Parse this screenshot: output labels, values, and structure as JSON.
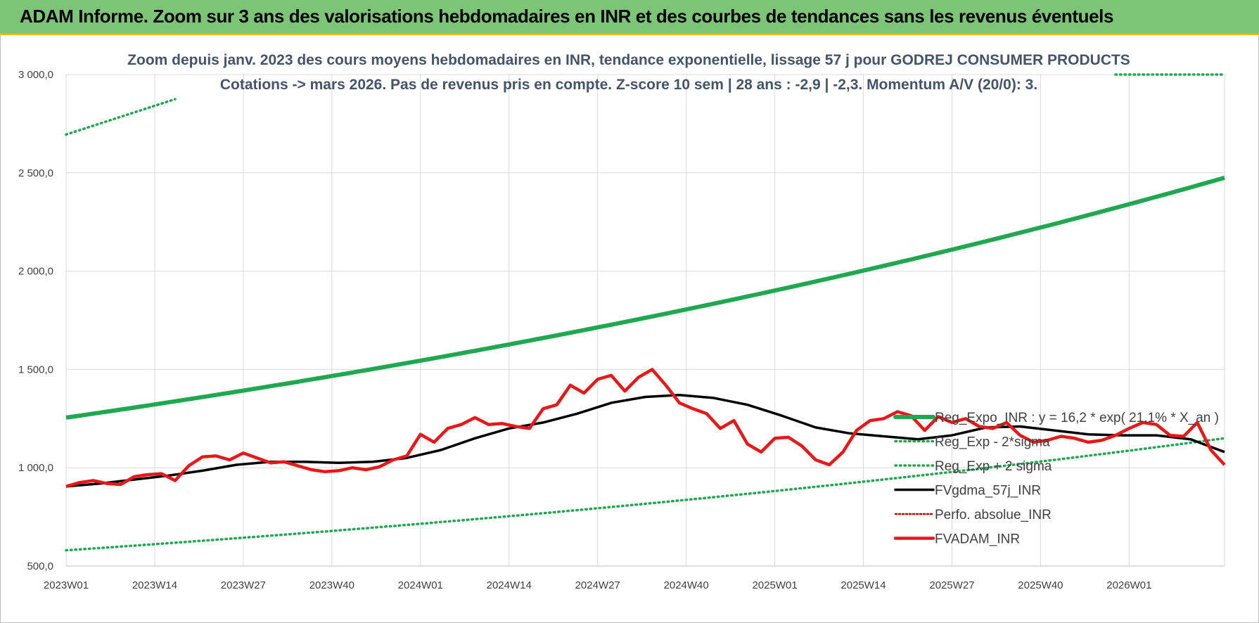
{
  "banner": {
    "title": "ADAM Informe. Zoom sur 3 ans des valorisations hebdomadaires en INR et des courbes de tendances sans les revenus éventuels"
  },
  "colors": {
    "banner_bg": "#7cc576",
    "banner_border": "#f2c100",
    "reg_expo": "#1fa84f",
    "reg_sigma": "#1fa84f",
    "fvgdma": "#000000",
    "perfo": "#c00000",
    "fvadam": "#e81818",
    "subtitle": "#44546a",
    "grid": "#d9d9d9"
  },
  "chart_data": {
    "type": "line",
    "title": "",
    "subtitle_lines": [
      "Zoom depuis janv. 2023 des cours moyens hebdomadaires en INR, tendance exponentielle, lissage 57 j pour GODREJ CONSUMER PRODUCTS",
      "Cotations -> mars 2026. Pas de revenus pris en compte. Z-score 10 sem | 28 ans : -2,9 | -2,3. Momentum A/V (20/0): 3."
    ],
    "xlabel": "",
    "ylabel": "",
    "ylim": [
      500,
      3000
    ],
    "y_ticks": [
      "500,0",
      "1 000,0",
      "1 500,0",
      "2 000,0",
      "2 500,0",
      "3 000,0"
    ],
    "y_tick_values": [
      500,
      1000,
      1500,
      2000,
      2500,
      3000
    ],
    "x_tick_labels": [
      "2023W01",
      "2023W14",
      "2023W27",
      "2023W40",
      "2024W01",
      "2024W14",
      "2024W27",
      "2024W40",
      "2025W01",
      "2025W14",
      "2025W27",
      "2025W40",
      "2026W01"
    ],
    "x_tick_weeks": [
      0,
      13,
      26,
      39,
      52,
      65,
      78,
      91,
      104,
      117,
      130,
      143,
      156
    ],
    "x_range_weeks": [
      0,
      170
    ],
    "grid": true,
    "legend_position": "right",
    "series": [
      {
        "name": "Reg_Expo_INR : y = 16,2 * exp( 21,1% * X_an )",
        "style": "solid-thick",
        "x_weeks": [
          0,
          170
        ],
        "growth_per_year": 0.211,
        "start_value": 1255,
        "end_value": 2475
      },
      {
        "name": "Reg_Exp - 2*sigma",
        "style": "dotted",
        "x_weeks": [
          0,
          170
        ],
        "growth_per_year": 0.211,
        "start_value": 580,
        "end_value": 1150
      },
      {
        "name": "Reg_Exp + 2 sigma",
        "style": "dotted",
        "x_weeks": [
          0,
          16,
          154,
          170
        ],
        "values": [
          2695,
          2875,
          3000,
          3000
        ],
        "segments": [
          [
            0,
            1
          ],
          [
            2,
            3
          ]
        ]
      },
      {
        "name": "FVgdma_57j_INR",
        "style": "solid",
        "x_weeks": [
          0,
          5,
          10,
          15,
          20,
          25,
          30,
          35,
          40,
          45,
          50,
          55,
          60,
          65,
          70,
          75,
          80,
          85,
          90,
          95,
          100,
          105,
          110,
          115,
          120,
          125,
          130,
          135,
          140,
          145,
          150,
          155,
          160,
          165,
          170
        ],
        "values": [
          905,
          920,
          940,
          960,
          985,
          1015,
          1030,
          1030,
          1025,
          1030,
          1050,
          1090,
          1150,
          1200,
          1230,
          1275,
          1330,
          1360,
          1370,
          1355,
          1320,
          1265,
          1205,
          1175,
          1160,
          1145,
          1165,
          1205,
          1210,
          1190,
          1170,
          1165,
          1165,
          1145,
          1080
        ]
      },
      {
        "name": "Perfo. absolue_INR",
        "style": "dotted",
        "values": []
      },
      {
        "name": "FVADAM_INR",
        "style": "solid-thick",
        "x_weeks": [
          0,
          2,
          4,
          6,
          8,
          10,
          12,
          14,
          16,
          18,
          20,
          22,
          24,
          26,
          28,
          30,
          32,
          34,
          36,
          38,
          40,
          42,
          44,
          46,
          48,
          50,
          52,
          54,
          56,
          58,
          60,
          62,
          64,
          66,
          68,
          70,
          72,
          74,
          76,
          78,
          80,
          82,
          84,
          86,
          88,
          90,
          92,
          94,
          96,
          98,
          100,
          102,
          104,
          106,
          108,
          110,
          112,
          114,
          116,
          118,
          120,
          122,
          124,
          126,
          128,
          130,
          132,
          134,
          136,
          138,
          140,
          142,
          144,
          146,
          148,
          150,
          152,
          154,
          156,
          158,
          160,
          162,
          164,
          166,
          168,
          170
        ],
        "values": [
          905,
          925,
          935,
          920,
          915,
          955,
          965,
          970,
          935,
          1010,
          1055,
          1060,
          1040,
          1075,
          1050,
          1025,
          1030,
          1010,
          990,
          980,
          985,
          1000,
          990,
          1005,
          1040,
          1060,
          1170,
          1130,
          1200,
          1220,
          1255,
          1220,
          1225,
          1210,
          1200,
          1300,
          1320,
          1420,
          1380,
          1450,
          1470,
          1390,
          1460,
          1500,
          1420,
          1330,
          1300,
          1275,
          1200,
          1240,
          1120,
          1080,
          1150,
          1155,
          1110,
          1040,
          1015,
          1080,
          1190,
          1240,
          1250,
          1285,
          1265,
          1190,
          1260,
          1230,
          1250,
          1210,
          1200,
          1230,
          1165,
          1130,
          1140,
          1160,
          1150,
          1130,
          1140,
          1165,
          1200,
          1230,
          1220,
          1165,
          1160,
          1230,
          1090,
          1015
        ]
      }
    ]
  }
}
